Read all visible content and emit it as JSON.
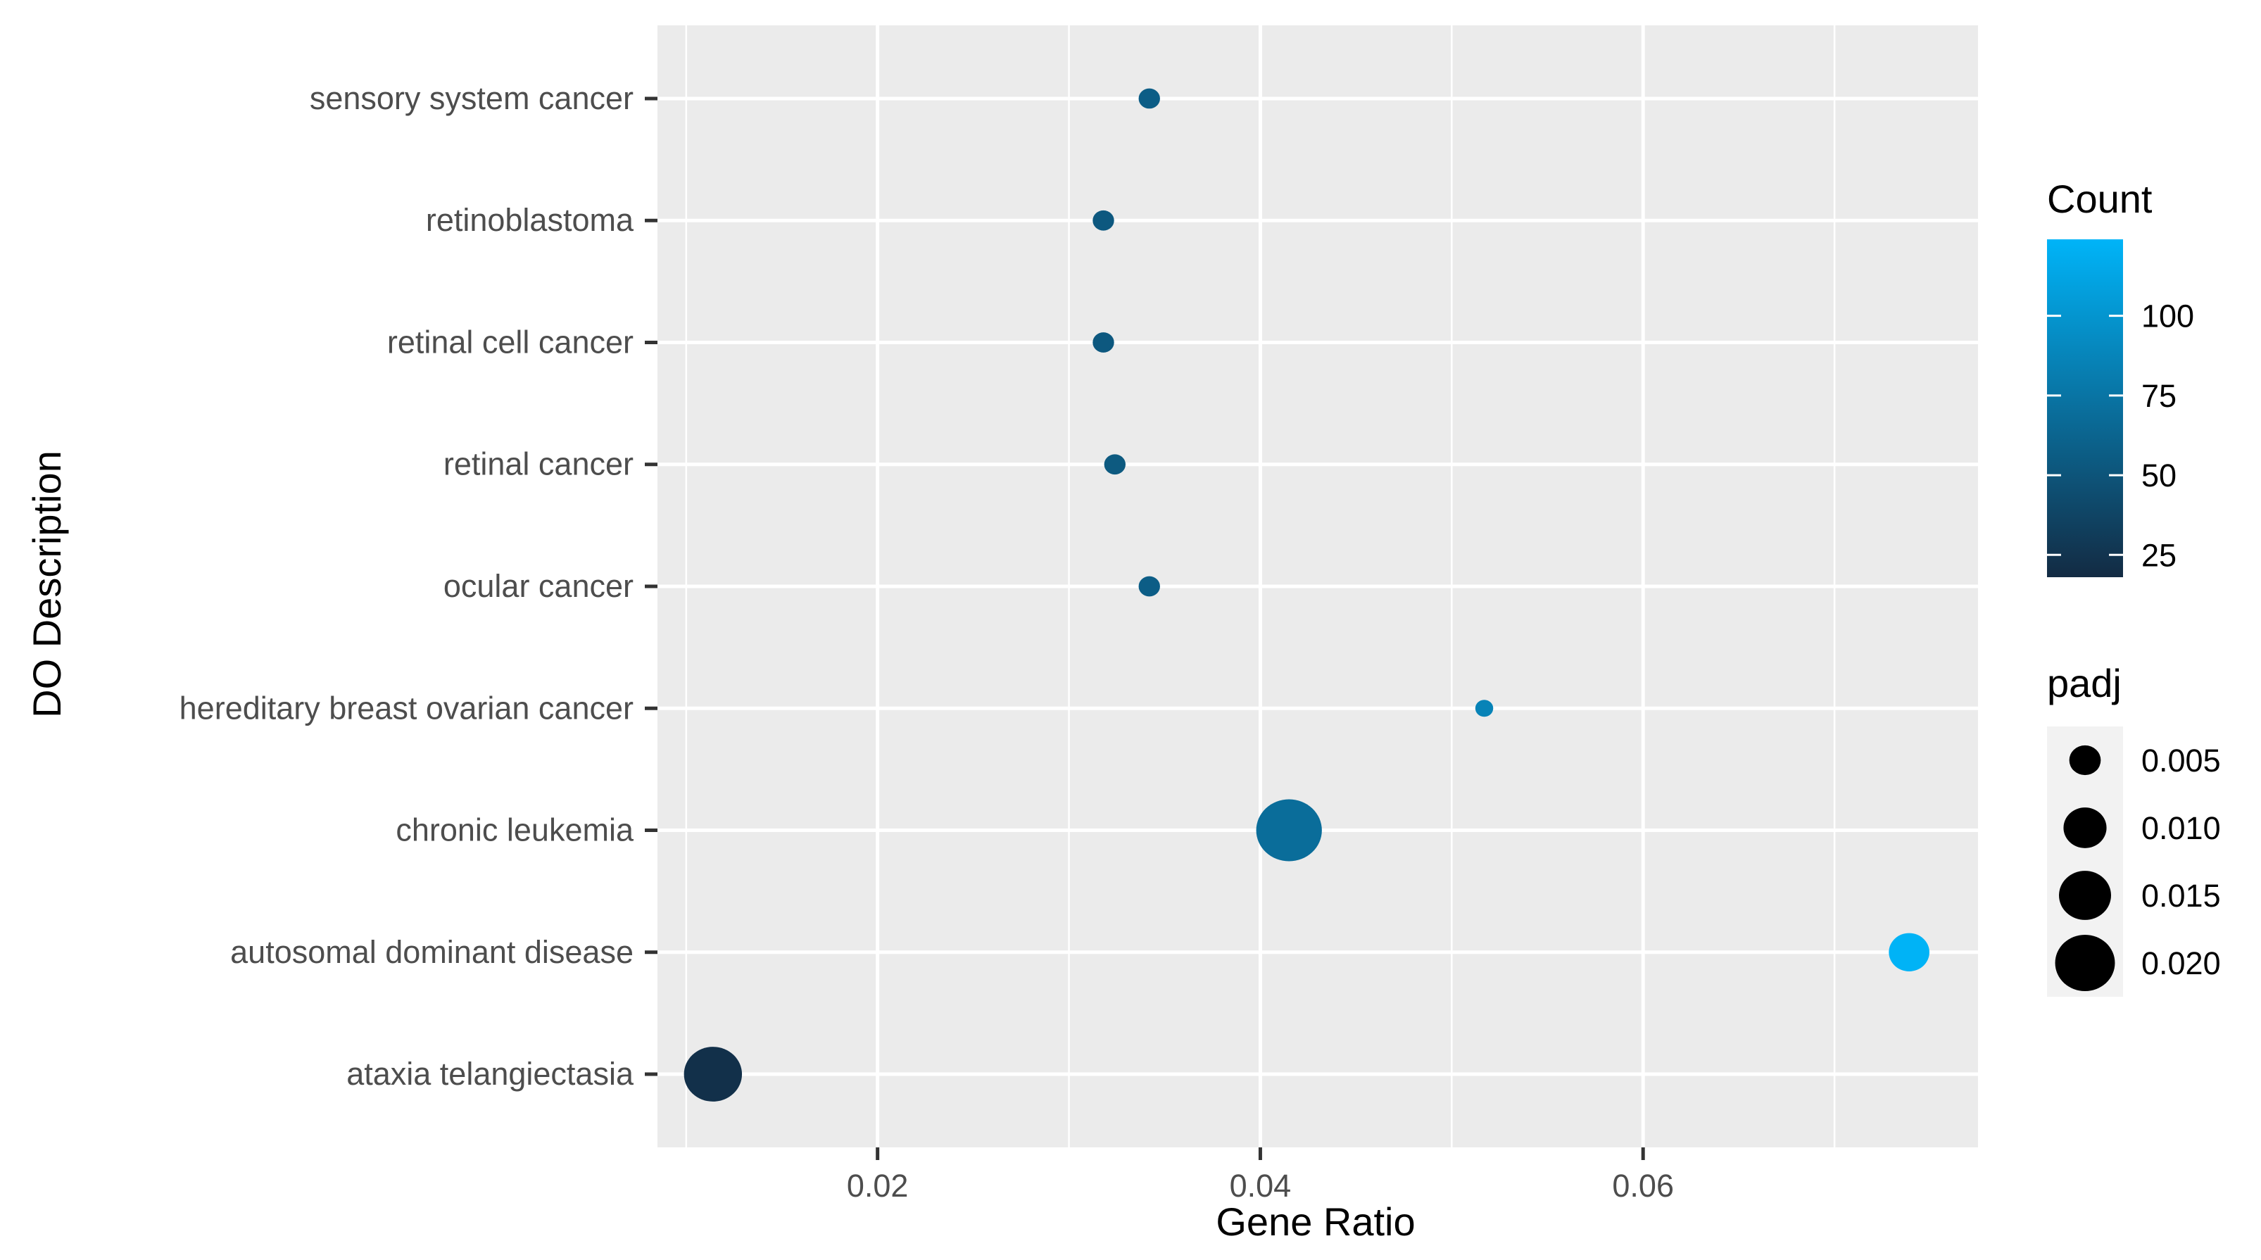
{
  "chart_data": {
    "type": "scatter",
    "xlabel": "Gene Ratio",
    "ylabel": "DO Description",
    "xlim": [
      0.0085,
      0.0775
    ],
    "x_ticks": [
      0.02,
      0.04,
      0.06
    ],
    "x_tick_labels": [
      "0.02",
      "0.04",
      "0.06"
    ],
    "categories": [
      "ataxia telangiectasia",
      "autosomal dominant disease",
      "chronic leukemia",
      "hereditary breast ovarian cancer",
      "ocular cancer",
      "retinal cancer",
      "retinal cell cancer",
      "retinoblastoma",
      "sensory system cancer"
    ],
    "points": [
      {
        "category": "ataxia telangiectasia",
        "gene_ratio": 0.0114,
        "count": 22,
        "padj": 0.0188
      },
      {
        "category": "autosomal dominant disease",
        "gene_ratio": 0.0739,
        "count": 123,
        "padj": 0.0088
      },
      {
        "category": "chronic leukemia",
        "gene_ratio": 0.0415,
        "count": 69,
        "padj": 0.0243
      },
      {
        "category": "hereditary breast ovarian cancer",
        "gene_ratio": 0.0517,
        "count": 86,
        "padj": 0.0011
      },
      {
        "category": "ocular cancer",
        "gene_ratio": 0.0342,
        "count": 57,
        "padj": 0.0019
      },
      {
        "category": "retinal cancer",
        "gene_ratio": 0.0324,
        "count": 54,
        "padj": 0.0019
      },
      {
        "category": "retinal cell cancer",
        "gene_ratio": 0.0318,
        "count": 53,
        "padj": 0.0019
      },
      {
        "category": "retinoblastoma",
        "gene_ratio": 0.0318,
        "count": 53,
        "padj": 0.0019
      },
      {
        "category": "sensory system cancer",
        "gene_ratio": 0.0342,
        "count": 57,
        "padj": 0.0019
      }
    ],
    "grid": true,
    "color_legend": {
      "title": "Count",
      "position": "right",
      "min": 18,
      "max": 124,
      "low_color": "#132b43",
      "high_color": "#00b4f8",
      "ticks": [
        25,
        50,
        75,
        100
      ],
      "tick_labels": [
        "25",
        "50",
        "75",
        "100"
      ]
    },
    "size_legend": {
      "title": "padj",
      "position": "right",
      "values": [
        0.005,
        0.01,
        0.015,
        0.02
      ],
      "labels": [
        "0.005",
        "0.010",
        "0.015",
        "0.020"
      ],
      "min_padj": 0.0011,
      "max_padj": 0.0243
    },
    "colors": {
      "panel_background": "#ebebeb",
      "grid_line": "#ffffff",
      "tick_text": "#4d4d4d",
      "legend_key_background": "#f2f2f2"
    }
  }
}
